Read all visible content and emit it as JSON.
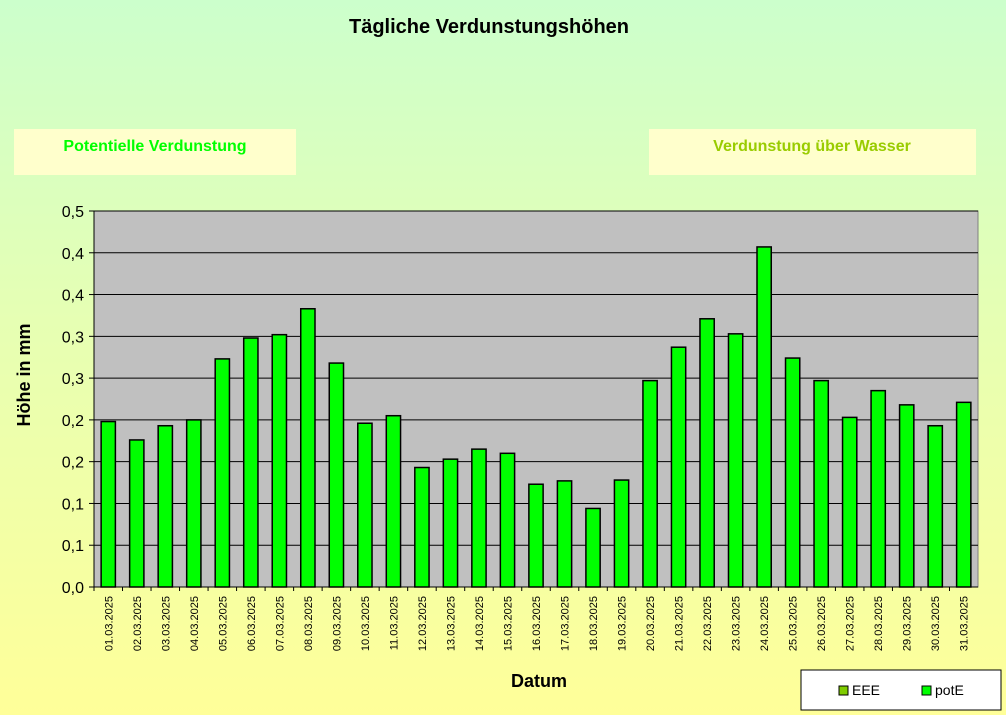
{
  "chart_data": {
    "type": "bar",
    "title": "Tägliche Verdunstungshöhen",
    "xlabel": "Datum",
    "ylabel": "Höhe in mm",
    "ylim": [
      0,
      0.45
    ],
    "y_tick_labels": [
      "0,0",
      "0,1",
      "0,1",
      "0,2",
      "0,2",
      "0,3",
      "0,3",
      "0,4",
      "0,4",
      "0,5"
    ],
    "grid": true,
    "categories": [
      "01.03.2025",
      "02.03.2025",
      "03.03.2025",
      "04.03.2025",
      "05.03.2025",
      "06.03.2025",
      "07.03.2025",
      "08.03.2025",
      "09.03.2025",
      "10.03.2025",
      "11.03.2025",
      "12.03.2025",
      "13.03.2025",
      "14.03.2025",
      "15.03.2025",
      "16.03.2025",
      "17.03.2025",
      "18.03.2025",
      "19.03.2025",
      "20.03.2025",
      "21.03.2025",
      "22.03.2025",
      "23.03.2025",
      "24.03.2025",
      "25.03.2025",
      "26.03.2025",
      "27.03.2025",
      "28.03.2025",
      "29.03.2025",
      "30.03.2025",
      "31.03.2025"
    ],
    "series": [
      {
        "name": "potE",
        "color": "#00ff00",
        "values": [
          0.198,
          0.176,
          0.193,
          0.2,
          0.273,
          0.298,
          0.302,
          0.333,
          0.268,
          0.196,
          0.205,
          0.143,
          0.153,
          0.165,
          0.16,
          0.123,
          0.127,
          0.094,
          0.128,
          0.247,
          0.287,
          0.321,
          0.303,
          0.407,
          0.274,
          0.247,
          0.203,
          0.235,
          0.218,
          0.193,
          0.221
        ]
      }
    ],
    "legend": {
      "placement": "bottom-right",
      "entries": [
        {
          "label": "EEE",
          "color": "#7fcc00"
        },
        {
          "label": "potE",
          "color": "#00ff00"
        }
      ]
    }
  },
  "panels": {
    "left_label": "Potentielle Verdunstung",
    "left_color": "#00ff00",
    "right_label": "Verdunstung über Wasser",
    "right_color": "#99cc00"
  }
}
